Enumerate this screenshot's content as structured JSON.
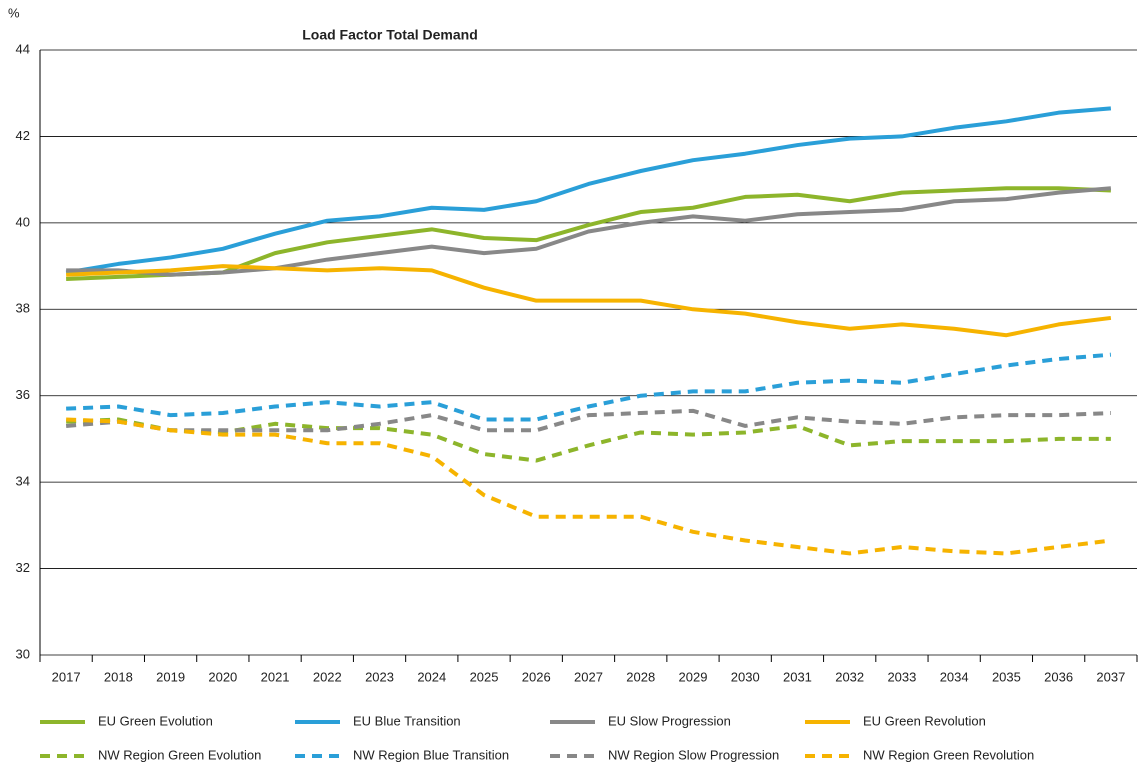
{
  "chart_data": {
    "type": "line",
    "title": "Load Factor Total Demand",
    "y_label": "%",
    "categories": [
      "2017",
      "2018",
      "2019",
      "2020",
      "2021",
      "2022",
      "2023",
      "2024",
      "2025",
      "2026",
      "2027",
      "2028",
      "2029",
      "2030",
      "2031",
      "2032",
      "2033",
      "2034",
      "2035",
      "2036",
      "2037"
    ],
    "ylim": [
      30,
      44
    ],
    "yticks": [
      30,
      32,
      34,
      36,
      38,
      40,
      42,
      44
    ],
    "grid": true,
    "legend": "bottom",
    "series": [
      {
        "name": "EU Green Evolution",
        "color": "#8db52b",
        "dashed": false,
        "values": [
          38.7,
          38.75,
          38.8,
          38.85,
          39.3,
          39.55,
          39.7,
          39.85,
          39.65,
          39.6,
          39.95,
          40.25,
          40.35,
          40.6,
          40.65,
          40.5,
          40.7,
          40.75,
          40.8,
          40.8,
          40.75
        ]
      },
      {
        "name": "EU Blue Transition",
        "color": "#2a9fd8",
        "dashed": false,
        "values": [
          38.85,
          39.05,
          39.2,
          39.4,
          39.75,
          40.05,
          40.15,
          40.35,
          40.3,
          40.5,
          40.9,
          41.2,
          41.45,
          41.6,
          41.8,
          41.95,
          42.0,
          42.2,
          42.35,
          42.55,
          42.65
        ]
      },
      {
        "name": "EU Slow Progression",
        "color": "#888888",
        "dashed": false,
        "values": [
          38.9,
          38.9,
          38.8,
          38.85,
          38.95,
          39.15,
          39.3,
          39.45,
          39.3,
          39.4,
          39.8,
          40.0,
          40.15,
          40.05,
          40.2,
          40.25,
          40.3,
          40.5,
          40.55,
          40.7,
          40.8
        ]
      },
      {
        "name": "EU Green Revolution",
        "color": "#f6b300",
        "dashed": false,
        "values": [
          38.8,
          38.85,
          38.9,
          39.0,
          38.95,
          38.9,
          38.95,
          38.9,
          38.5,
          38.2,
          38.2,
          38.2,
          38.0,
          37.9,
          37.7,
          37.55,
          37.65,
          37.55,
          37.4,
          37.65,
          37.8
        ]
      },
      {
        "name": "NW Region Green Evolution",
        "color": "#8db52b",
        "dashed": true,
        "values": [
          35.4,
          35.45,
          35.2,
          35.15,
          35.35,
          35.25,
          35.25,
          35.1,
          34.65,
          34.5,
          34.85,
          35.15,
          35.1,
          35.15,
          35.3,
          34.85,
          34.95,
          34.95,
          34.95,
          35.0,
          35.0
        ]
      },
      {
        "name": "NW Region Blue Transition",
        "color": "#2a9fd8",
        "dashed": true,
        "values": [
          35.7,
          35.75,
          35.55,
          35.6,
          35.75,
          35.85,
          35.75,
          35.85,
          35.45,
          35.45,
          35.75,
          36.0,
          36.1,
          36.1,
          36.3,
          36.35,
          36.3,
          36.5,
          36.7,
          36.85,
          36.95
        ]
      },
      {
        "name": "NW Region Slow Progression",
        "color": "#888888",
        "dashed": true,
        "values": [
          35.3,
          35.4,
          35.2,
          35.2,
          35.2,
          35.2,
          35.35,
          35.55,
          35.2,
          35.2,
          35.55,
          35.6,
          35.65,
          35.3,
          35.5,
          35.4,
          35.35,
          35.5,
          35.55,
          35.55,
          35.6
        ]
      },
      {
        "name": "NW Region Green Revolution",
        "color": "#f6b300",
        "dashed": true,
        "values": [
          35.45,
          35.4,
          35.2,
          35.1,
          35.1,
          34.9,
          34.9,
          34.6,
          33.7,
          33.2,
          33.2,
          33.2,
          32.85,
          32.65,
          32.5,
          32.35,
          32.5,
          32.4,
          32.35,
          32.5,
          32.65
        ]
      }
    ]
  }
}
